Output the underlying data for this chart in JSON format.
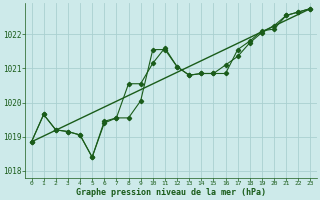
{
  "title": "Graphe pression niveau de la mer (hPa)",
  "bg_color": "#cdeaea",
  "grid_color": "#aad0d0",
  "line_color": "#1a5c1a",
  "xlim": [
    -0.5,
    23.5
  ],
  "ylim": [
    1017.8,
    1022.9
  ],
  "yticks": [
    1018,
    1019,
    1020,
    1021,
    1022
  ],
  "xticks": [
    0,
    1,
    2,
    3,
    4,
    5,
    6,
    7,
    8,
    9,
    10,
    11,
    12,
    13,
    14,
    15,
    16,
    17,
    18,
    19,
    20,
    21,
    22,
    23
  ],
  "series1_x": [
    0,
    1,
    2,
    3,
    4,
    5,
    6,
    7,
    8,
    9,
    10,
    11,
    12,
    13,
    14,
    15,
    16,
    17,
    18,
    19,
    20,
    21,
    22,
    23
  ],
  "series1_y": [
    1018.85,
    1019.65,
    1019.2,
    1019.15,
    1019.05,
    1018.4,
    1019.45,
    1019.55,
    1019.55,
    1020.05,
    1021.55,
    1021.55,
    1021.05,
    1020.8,
    1020.85,
    1020.85,
    1020.85,
    1021.55,
    1021.8,
    1022.1,
    1022.15,
    1022.55,
    1022.65,
    1022.75
  ],
  "series2_x": [
    0,
    1,
    2,
    3,
    4,
    5,
    6,
    7,
    8,
    9,
    10,
    11,
    12,
    13,
    14,
    15,
    16,
    17,
    18,
    19,
    20,
    21,
    22,
    23
  ],
  "series2_y": [
    1018.85,
    1019.65,
    1019.2,
    1019.15,
    1019.05,
    1018.4,
    1019.4,
    1019.55,
    1020.55,
    1020.55,
    1021.15,
    1021.6,
    1021.05,
    1020.8,
    1020.85,
    1020.85,
    1021.1,
    1021.35,
    1021.75,
    1022.05,
    1022.25,
    1022.55,
    1022.65,
    1022.75
  ],
  "series3_x": [
    0,
    23
  ],
  "series3_y": [
    1018.85,
    1022.75
  ]
}
